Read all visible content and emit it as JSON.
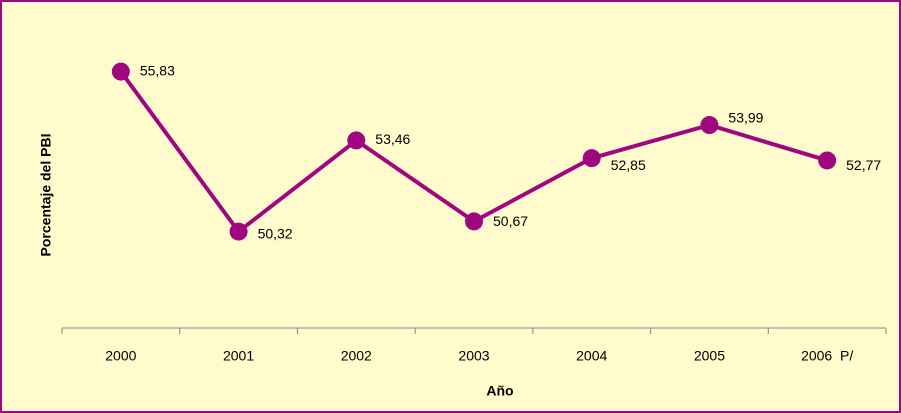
{
  "chart_data": {
    "type": "line",
    "x_label": "Año",
    "y_label": "Porcentaje del PBI",
    "categories": [
      "2000",
      "2001",
      "2002",
      "2003",
      "2004",
      "2005",
      "2006  P/"
    ],
    "values": [
      55.83,
      50.32,
      53.46,
      50.67,
      52.85,
      53.99,
      52.77
    ],
    "value_labels": [
      "55,83",
      "50,32",
      "53,46",
      "50,67",
      "52,85",
      "53,99",
      "52,77"
    ],
    "color": "#a0067f",
    "ylim": [
      47,
      58
    ]
  }
}
